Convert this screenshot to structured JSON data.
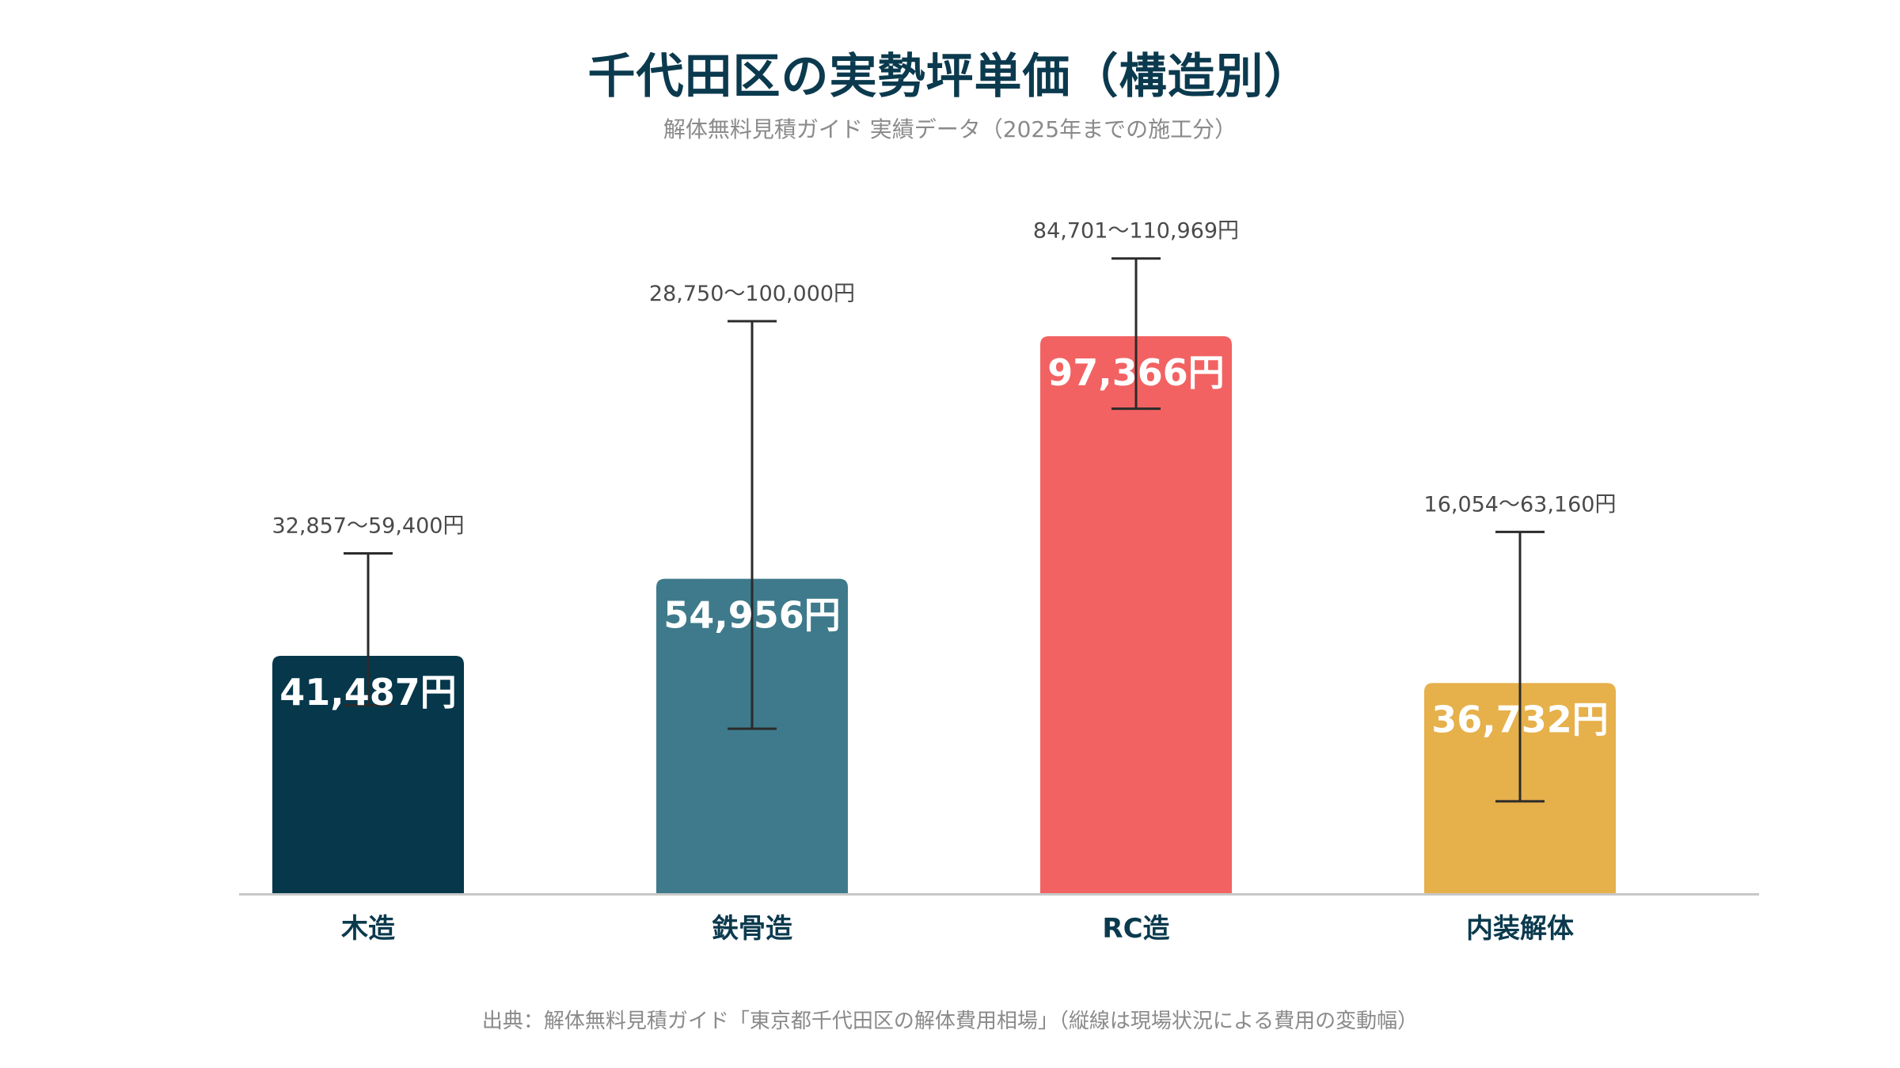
{
  "title": "千代田区の実勢坪単価（構造別）",
  "subtitle": "解体無料見積ガイド 実績データ（2025年までの施工分）",
  "source": "出典：解体無料見積ガイド「東京都千代田区の解体費用相場」（縦線は現場状況による費用の変動幅）",
  "chart_data": {
    "type": "bar",
    "title": "千代田区の実勢坪単価（構造別）",
    "subtitle": "解体無料見積ガイド 実績データ（2025年までの施工分）",
    "categories": [
      "木造",
      "鉄骨造",
      "RC造",
      "内装解体"
    ],
    "values": [
      41487,
      54956,
      97366,
      36732
    ],
    "value_labels": [
      "41,487円",
      "54,956円",
      "97,366円",
      "36,732円"
    ],
    "ranges": [
      {
        "low": 32857,
        "high": 59400
      },
      {
        "low": 28750,
        "high": 100000
      },
      {
        "low": 84701,
        "high": 110969
      },
      {
        "low": 16054,
        "high": 63160
      }
    ],
    "range_labels": [
      "32,857〜59,400円",
      "28,750〜100,000円",
      "84,701〜110,969円",
      "16,054〜63,160円"
    ],
    "colors": [
      "#06374b",
      "#3e7a8b",
      "#f26262",
      "#e6b04b"
    ],
    "error_bar_color": "#2b2b2b",
    "axis_color": "#c8c8c8",
    "ylim": [
      0,
      120000
    ],
    "grid": false,
    "legend": "none",
    "xlabel": "",
    "ylabel": "",
    "note": "出典：解体無料見積ガイド「東京都千代田区の解体費用相場」（縦線は現場状況による費用の変動幅）"
  }
}
